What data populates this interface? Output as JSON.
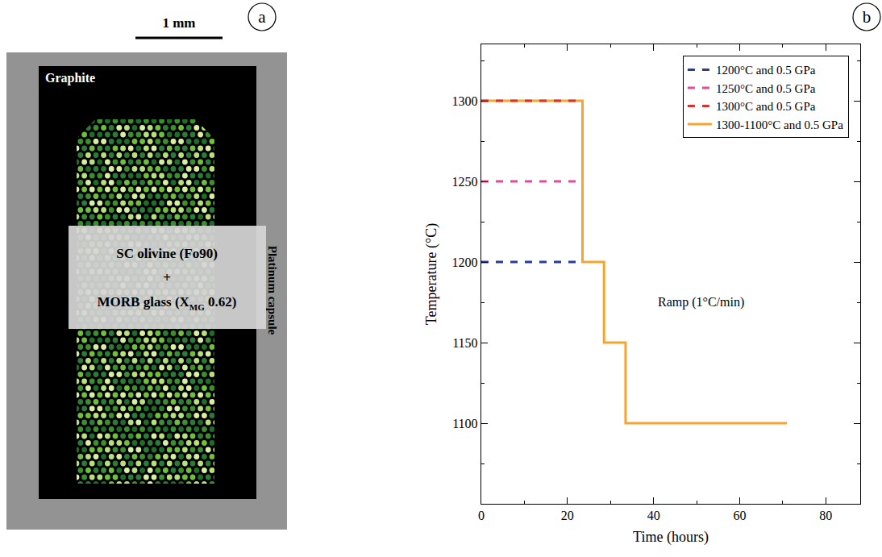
{
  "diagram": {
    "panel_label": "a",
    "scale_bar": "1 mm",
    "outer_label": "Platinum capsule",
    "inner_label": "Graphite",
    "sample_lines": [
      "SC olivine (Fo90)",
      "+",
      {
        "text": "MORB glass (X",
        "subscript": "MG",
        "after": " 0.62)"
      }
    ]
  },
  "chart_data": {
    "type": "line",
    "panel_label": "b",
    "x_label": "Time (hours)",
    "y_label": "Temperature (°C)",
    "xlim": [
      0,
      88
    ],
    "ylim": [
      1050,
      1335
    ],
    "xticks": [
      0,
      20,
      40,
      60,
      80
    ],
    "yticks": [
      1100,
      1150,
      1200,
      1250,
      1300
    ],
    "legend": "top right",
    "annotations": [
      {
        "text": "Ramp (1°C/min)",
        "x": 51,
        "y": 1175
      }
    ],
    "series": [
      {
        "name": "1200°C and 0.5 GPa",
        "color": "#2b3a9e",
        "line_style": "dashed",
        "x": [
          0,
          23.5
        ],
        "values": [
          1200,
          1200
        ]
      },
      {
        "name": "1250°C and 0.5 GPa",
        "color": "#e8489b",
        "line_style": "dashed",
        "x": [
          0,
          23
        ],
        "values": [
          1250,
          1250
        ]
      },
      {
        "name": "1300°C and 0.5 GPa",
        "color": "#e0302e",
        "line_style": "dashed",
        "x": [
          0,
          23.5
        ],
        "values": [
          1300,
          1300
        ]
      },
      {
        "name": "1300-1100°C and 0.5 GPa",
        "color": "#f6a431",
        "line_style": "solid",
        "x": [
          0,
          23.5,
          23.5,
          28.5,
          28.5,
          33.5,
          33.5,
          71
        ],
        "values": [
          1300,
          1300,
          1200,
          1200,
          1150,
          1150,
          1100,
          1100
        ]
      }
    ]
  }
}
